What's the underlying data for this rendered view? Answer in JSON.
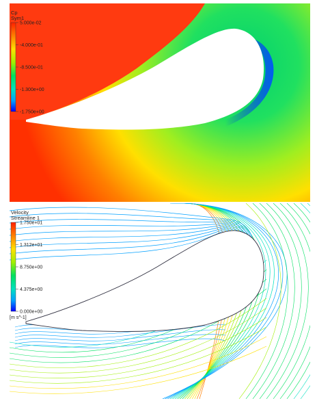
{
  "chart_data": [
    {
      "type": "heatmap",
      "title": "Cp",
      "subtitle": "Sym1",
      "colorbar_ticks": [
        "5.000e-02",
        "-4.000e-01",
        "-8.500e-01",
        "-1.300e+00",
        "-1.750e+00"
      ],
      "value_range": [
        -1.75,
        0.05
      ],
      "colormap": [
        "#0000ff",
        "#00a0ff",
        "#00e0c0",
        "#00e060",
        "#a0f000",
        "#ffe000",
        "#ff8000",
        "#ff2000"
      ]
    },
    {
      "type": "scatter",
      "title": "Velocity",
      "subtitle": "Streamline 1",
      "colorbar_ticks": [
        "1.750e+01",
        "1.312e+01",
        "8.750e+00",
        "4.375e+00",
        "0.000e+00"
      ],
      "units": "[m s^-1]",
      "value_range": [
        0,
        17.5
      ],
      "colormap": [
        "#0000ff",
        "#00a0ff",
        "#00e0c0",
        "#00e060",
        "#a0f000",
        "#ffe000",
        "#ff8000",
        "#ff2000"
      ]
    }
  ]
}
